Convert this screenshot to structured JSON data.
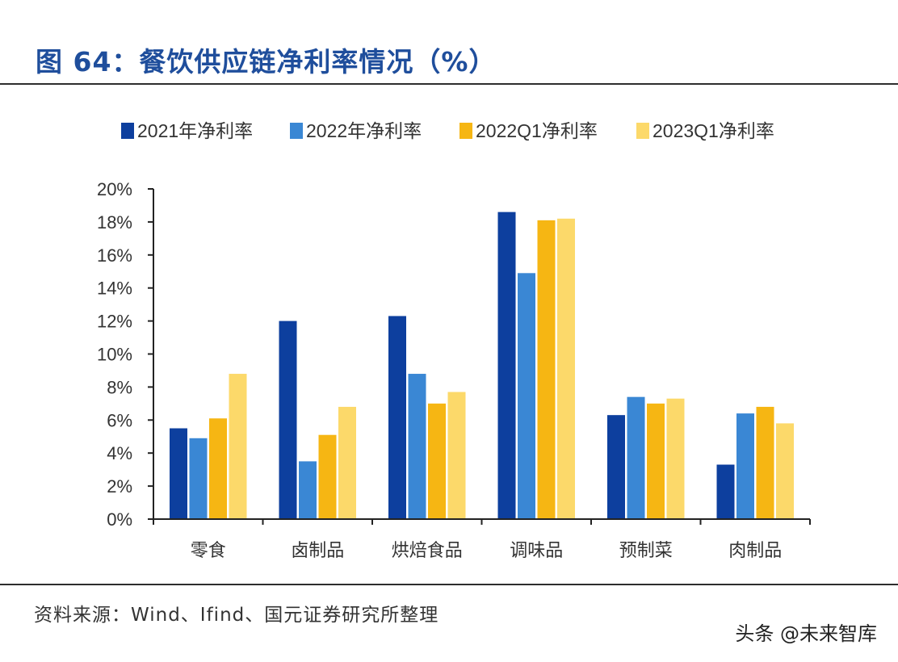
{
  "title": "图 64：餐饮供应链净利率情况（%）",
  "source": "资料来源：Wind、Ifind、国元证券研究所整理",
  "watermark": "头条 @未来智库",
  "chart_data": {
    "type": "bar",
    "categories": [
      "零食",
      "卤制品",
      "烘焙食品",
      "调味品",
      "预制菜",
      "肉制品"
    ],
    "series": [
      {
        "name": "2021年净利率",
        "color": "#0d3f9e",
        "values": [
          5.5,
          12.0,
          12.3,
          18.6,
          6.3,
          3.3
        ]
      },
      {
        "name": "2022年净利率",
        "color": "#3a87d4",
        "values": [
          4.9,
          3.5,
          8.8,
          14.9,
          7.4,
          6.4
        ]
      },
      {
        "name": "2022Q1净利率",
        "color": "#f6b613",
        "values": [
          6.1,
          5.1,
          7.0,
          18.1,
          7.0,
          6.8
        ]
      },
      {
        "name": "2023Q1净利率",
        "color": "#fcd96a",
        "values": [
          8.8,
          6.8,
          7.7,
          18.2,
          7.3,
          5.8
        ]
      }
    ],
    "yticks": [
      "0%",
      "2%",
      "4%",
      "6%",
      "8%",
      "10%",
      "12%",
      "14%",
      "16%",
      "18%",
      "20%"
    ],
    "ylim": [
      0,
      20
    ],
    "xlabel": "",
    "ylabel": "",
    "legend_position": "top",
    "grid": false
  }
}
